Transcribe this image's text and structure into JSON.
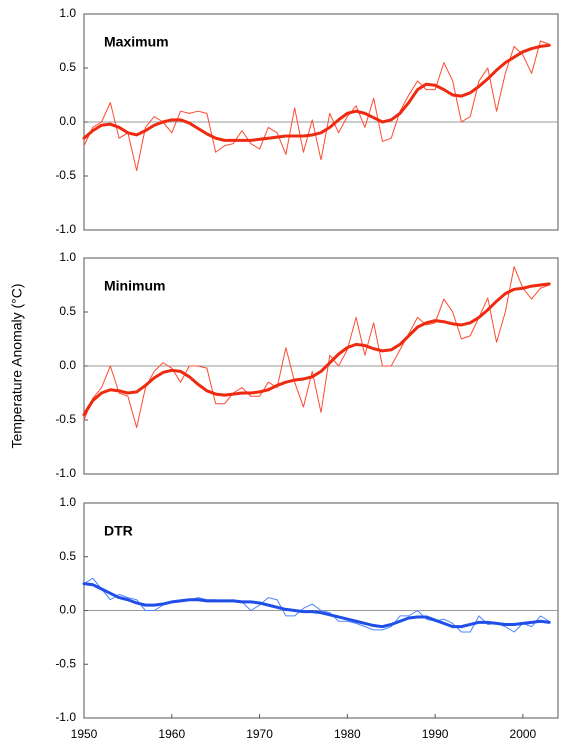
{
  "chart_data": [
    {
      "type": "line",
      "title": "Maximum",
      "x": [
        1950,
        1951,
        1952,
        1953,
        1954,
        1955,
        1956,
        1957,
        1958,
        1959,
        1960,
        1961,
        1962,
        1963,
        1964,
        1965,
        1966,
        1967,
        1968,
        1969,
        1970,
        1971,
        1972,
        1973,
        1974,
        1975,
        1976,
        1977,
        1978,
        1979,
        1980,
        1981,
        1982,
        1983,
        1984,
        1985,
        1986,
        1987,
        1988,
        1989,
        1990,
        1991,
        1992,
        1993,
        1994,
        1995,
        1996,
        1997,
        1998,
        1999,
        2000,
        2001,
        2002,
        2003
      ],
      "series": [
        {
          "color": "#ff4a30",
          "line_width": 1,
          "values": [
            -0.22,
            -0.05,
            0.0,
            0.18,
            -0.15,
            -0.1,
            -0.45,
            -0.05,
            0.05,
            0.0,
            -0.1,
            0.1,
            0.08,
            0.1,
            0.08,
            -0.28,
            -0.22,
            -0.2,
            -0.08,
            -0.2,
            -0.25,
            -0.05,
            -0.1,
            -0.3,
            0.13,
            -0.28,
            0.02,
            -0.35,
            0.08,
            -0.1,
            0.05,
            0.15,
            -0.05,
            0.22,
            -0.18,
            -0.15,
            0.1,
            0.25,
            0.38,
            0.3,
            0.3,
            0.55,
            0.38,
            0.0,
            0.05,
            0.38,
            0.5,
            0.1,
            0.45,
            0.7,
            0.62,
            0.45,
            0.75,
            0.72
          ]
        },
        {
          "color": "#ee2a10",
          "line_width": 3,
          "values": [
            -0.15,
            -0.08,
            -0.03,
            -0.02,
            -0.05,
            -0.1,
            -0.12,
            -0.08,
            -0.03,
            0.0,
            0.02,
            0.02,
            -0.01,
            -0.06,
            -0.11,
            -0.15,
            -0.17,
            -0.17,
            -0.17,
            -0.17,
            -0.16,
            -0.15,
            -0.14,
            -0.13,
            -0.13,
            -0.13,
            -0.12,
            -0.1,
            -0.05,
            0.02,
            0.08,
            0.1,
            0.08,
            0.04,
            0.0,
            0.02,
            0.08,
            0.18,
            0.3,
            0.35,
            0.34,
            0.3,
            0.25,
            0.24,
            0.27,
            0.33,
            0.4,
            0.48,
            0.55,
            0.6,
            0.65,
            0.68,
            0.7,
            0.71
          ]
        }
      ],
      "xlim": [
        1950,
        2004
      ],
      "ylim": [
        -1.0,
        1.0
      ],
      "yticks": [
        {
          "value": -1.0,
          "label": "-1.0"
        },
        {
          "value": -0.5,
          "label": "-0.5"
        },
        {
          "value": 0.0,
          "label": "0.0"
        },
        {
          "value": 0.5,
          "label": "0.5"
        },
        {
          "value": 1.0,
          "label": "1.0"
        }
      ],
      "hline": 0
    },
    {
      "type": "line",
      "title": "Minimum",
      "ylabel": "Temperature Anomaly (°C)",
      "x": [
        1950,
        1951,
        1952,
        1953,
        1954,
        1955,
        1956,
        1957,
        1958,
        1959,
        1960,
        1961,
        1962,
        1963,
        1964,
        1965,
        1966,
        1967,
        1968,
        1969,
        1970,
        1971,
        1972,
        1973,
        1974,
        1975,
        1976,
        1977,
        1978,
        1979,
        1980,
        1981,
        1982,
        1983,
        1984,
        1985,
        1986,
        1987,
        1988,
        1989,
        1990,
        1991,
        1992,
        1993,
        1994,
        1995,
        1996,
        1997,
        1998,
        1999,
        2000,
        2001,
        2002,
        2003
      ],
      "series": [
        {
          "color": "#ff4a30",
          "line_width": 1,
          "values": [
            -0.5,
            -0.3,
            -0.2,
            0.0,
            -0.25,
            -0.28,
            -0.57,
            -0.2,
            -0.05,
            0.03,
            -0.02,
            -0.15,
            0.0,
            0.0,
            -0.02,
            -0.35,
            -0.35,
            -0.25,
            -0.2,
            -0.28,
            -0.28,
            -0.15,
            -0.2,
            0.17,
            -0.15,
            -0.38,
            -0.05,
            -0.43,
            0.1,
            0.0,
            0.15,
            0.45,
            0.1,
            0.4,
            0.0,
            0.0,
            0.15,
            0.3,
            0.45,
            0.38,
            0.4,
            0.62,
            0.5,
            0.25,
            0.28,
            0.45,
            0.63,
            0.22,
            0.5,
            0.92,
            0.72,
            0.62,
            0.72,
            0.75
          ]
        },
        {
          "color": "#ee2a10",
          "line_width": 3,
          "values": [
            -0.45,
            -0.32,
            -0.25,
            -0.22,
            -0.23,
            -0.25,
            -0.24,
            -0.18,
            -0.11,
            -0.06,
            -0.04,
            -0.05,
            -0.1,
            -0.17,
            -0.23,
            -0.26,
            -0.27,
            -0.26,
            -0.25,
            -0.25,
            -0.24,
            -0.22,
            -0.18,
            -0.15,
            -0.13,
            -0.12,
            -0.1,
            -0.05,
            0.03,
            0.11,
            0.17,
            0.2,
            0.19,
            0.16,
            0.14,
            0.15,
            0.2,
            0.28,
            0.36,
            0.4,
            0.42,
            0.41,
            0.39,
            0.38,
            0.4,
            0.45,
            0.52,
            0.6,
            0.67,
            0.71,
            0.72,
            0.74,
            0.75,
            0.76
          ]
        }
      ],
      "xlim": [
        1950,
        2004
      ],
      "ylim": [
        -1.0,
        1.0
      ],
      "yticks": [
        {
          "value": -1.0,
          "label": "-1.0"
        },
        {
          "value": -0.5,
          "label": "-0.5"
        },
        {
          "value": 0.0,
          "label": "0.0"
        },
        {
          "value": 0.5,
          "label": "0.5"
        },
        {
          "value": 1.0,
          "label": "1.0"
        }
      ],
      "hline": 0
    },
    {
      "type": "line",
      "title": "DTR",
      "x": [
        1950,
        1951,
        1952,
        1953,
        1954,
        1955,
        1956,
        1957,
        1958,
        1959,
        1960,
        1961,
        1962,
        1963,
        1964,
        1965,
        1966,
        1967,
        1968,
        1969,
        1970,
        1971,
        1972,
        1973,
        1974,
        1975,
        1976,
        1977,
        1978,
        1979,
        1980,
        1981,
        1982,
        1983,
        1984,
        1985,
        1986,
        1987,
        1988,
        1989,
        1990,
        1991,
        1992,
        1993,
        1994,
        1995,
        1996,
        1997,
        1998,
        1999,
        2000,
        2001,
        2002,
        2003
      ],
      "series": [
        {
          "color": "#4a86ff",
          "line_width": 1,
          "values": [
            0.25,
            0.3,
            0.2,
            0.1,
            0.15,
            0.12,
            0.1,
            0.0,
            0.0,
            0.05,
            0.08,
            0.1,
            0.1,
            0.12,
            0.1,
            0.1,
            0.08,
            0.1,
            0.08,
            0.0,
            0.05,
            0.12,
            0.1,
            -0.05,
            -0.05,
            0.02,
            0.06,
            0.0,
            -0.02,
            -0.1,
            -0.1,
            -0.12,
            -0.15,
            -0.18,
            -0.18,
            -0.15,
            -0.05,
            -0.05,
            0.0,
            -0.08,
            -0.1,
            -0.08,
            -0.12,
            -0.2,
            -0.2,
            -0.05,
            -0.13,
            -0.12,
            -0.15,
            -0.2,
            -0.12,
            -0.15,
            -0.05,
            -0.1
          ]
        },
        {
          "color": "#1f4fe8",
          "line_width": 3,
          "values": [
            0.25,
            0.24,
            0.2,
            0.16,
            0.12,
            0.1,
            0.07,
            0.05,
            0.05,
            0.06,
            0.08,
            0.09,
            0.1,
            0.1,
            0.09,
            0.09,
            0.09,
            0.09,
            0.08,
            0.08,
            0.07,
            0.05,
            0.03,
            0.01,
            0.0,
            -0.01,
            -0.01,
            -0.02,
            -0.04,
            -0.06,
            -0.08,
            -0.1,
            -0.12,
            -0.14,
            -0.15,
            -0.13,
            -0.1,
            -0.07,
            -0.06,
            -0.06,
            -0.09,
            -0.12,
            -0.15,
            -0.15,
            -0.13,
            -0.11,
            -0.11,
            -0.12,
            -0.13,
            -0.13,
            -0.12,
            -0.11,
            -0.1,
            -0.11
          ]
        }
      ],
      "xlim": [
        1950,
        2004
      ],
      "ylim": [
        -1.0,
        1.0
      ],
      "xticks": [
        1950,
        1960,
        1970,
        1980,
        1990,
        2000
      ],
      "yticks": [
        {
          "value": -1.0,
          "label": "-1.0"
        },
        {
          "value": -0.5,
          "label": "-0.5"
        },
        {
          "value": 0.0,
          "label": "0.0"
        },
        {
          "value": 0.5,
          "label": "0.5"
        },
        {
          "value": 1.0,
          "label": "1.0"
        }
      ],
      "hline": 0
    }
  ]
}
